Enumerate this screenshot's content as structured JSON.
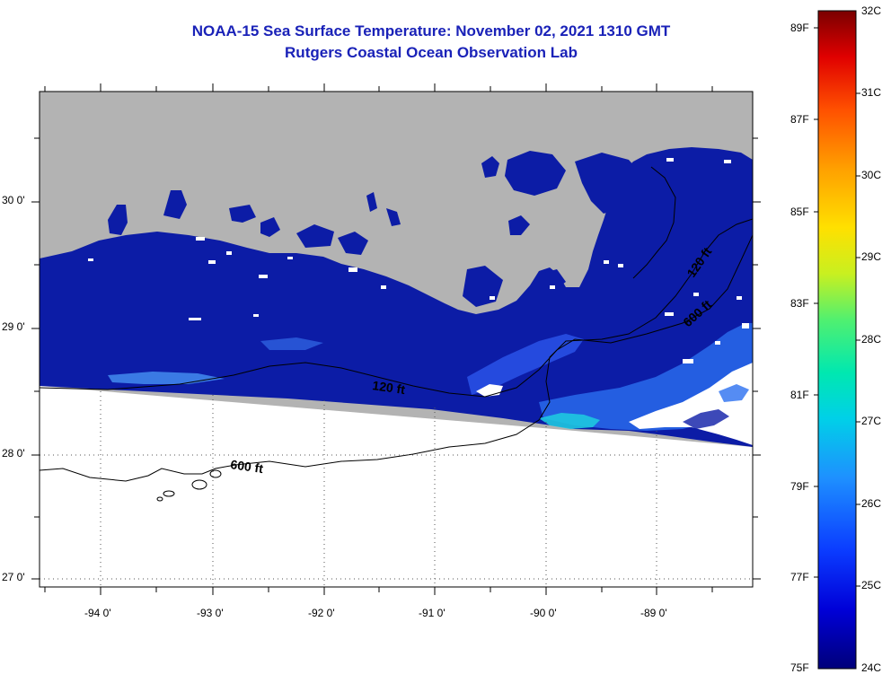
{
  "title": "NOAA-15 Sea Surface Temperature:  November 02, 2021 1310 GMT",
  "subtitle": "Rutgers Coastal Ocean Observation Lab",
  "map": {
    "lon_labels": [
      "-94 0'",
      "-93 0'",
      "-92 0'",
      "-91 0'",
      "-90 0'",
      "-89 0'"
    ],
    "lat_labels": [
      "30 0'",
      "29 0'",
      "28 0'",
      "27 0'"
    ],
    "isobaths": [
      {
        "label": "120 ft",
        "depth_ft": 120
      },
      {
        "label": "600 ft",
        "depth_ft": 600
      },
      {
        "label": "120 ft",
        "depth_ft": 120
      },
      {
        "label": "600 ft",
        "depth_ft": 600
      }
    ],
    "colors": {
      "land": "#b3b3b3",
      "ocean_base": "#0c1ca6",
      "no_data": "#ffffff",
      "grid": "#555555"
    }
  },
  "colorbar": {
    "celsius_labels": [
      "32C",
      "31C",
      "30C",
      "29C",
      "28C",
      "27C",
      "26C",
      "25C",
      "24C"
    ],
    "fahrenheit_labels": [
      "89F",
      "87F",
      "85F",
      "83F",
      "81F",
      "79F",
      "77F",
      "75F"
    ],
    "range_celsius": [
      24,
      32
    ],
    "stops": [
      "#00007a",
      "#0000d8",
      "#0b3cff",
      "#1e90ff",
      "#00d0e8",
      "#00e8b0",
      "#50f070",
      "#c8f020",
      "#ffe000",
      "#ffa000",
      "#ff5000",
      "#e00000",
      "#7a0000"
    ]
  }
}
